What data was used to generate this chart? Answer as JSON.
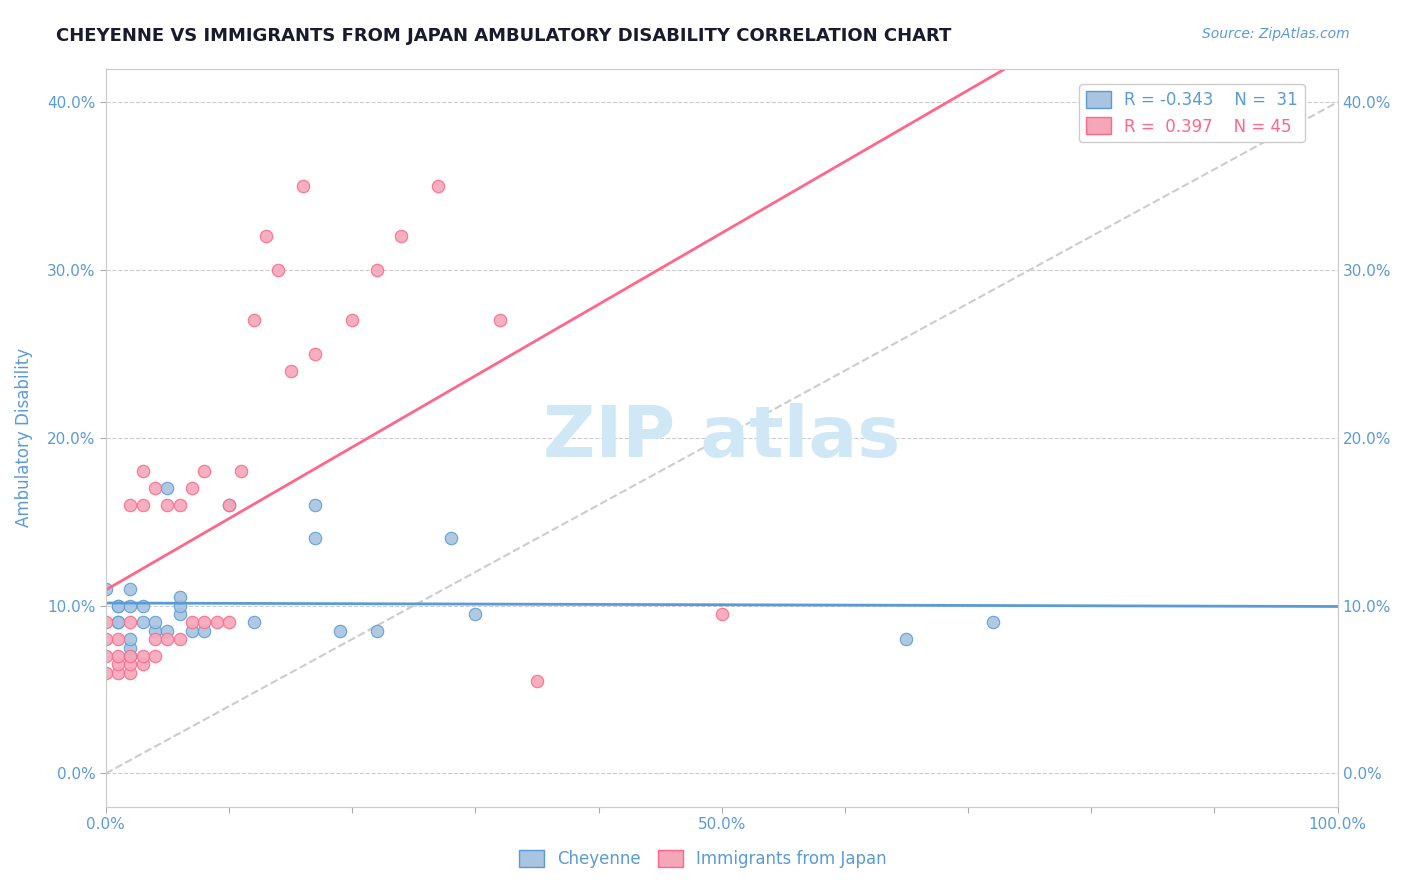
{
  "title": "CHEYENNE VS IMMIGRANTS FROM JAPAN AMBULATORY DISABILITY CORRELATION CHART",
  "source_text": "Source: ZipAtlas.com",
  "xlabel": "",
  "ylabel": "Ambulatory Disability",
  "xlim": [
    0.0,
    1.0
  ],
  "ylim": [
    -0.02,
    0.42
  ],
  "xticks": [
    0.0,
    0.1,
    0.2,
    0.3,
    0.4,
    0.5,
    0.6,
    0.7,
    0.8,
    0.9,
    1.0
  ],
  "yticks": [
    0.0,
    0.1,
    0.2,
    0.3,
    0.4
  ],
  "ytick_labels": [
    "0.0%",
    "10.0%",
    "20.0%",
    "30.0%",
    "40.0%"
  ],
  "xtick_labels": [
    "0.0%",
    "",
    "",
    "",
    "",
    "50.0%",
    "",
    "",
    "",
    "",
    "100.0%"
  ],
  "legend_r1": "R = -0.343",
  "legend_n1": "N =  31",
  "legend_r2": "R =  0.397",
  "legend_n2": "N = 45",
  "color_cheyenne": "#a8c4e0",
  "color_japan": "#f4a7b9",
  "color_line_cheyenne": "#5b9bd5",
  "color_line_japan": "#ff6688",
  "color_axis_labels": "#5b9bd5",
  "watermark_text": "ZIPAtlas",
  "watermark_color": "#d0e8f5",
  "cheyenne_x": [
    0.0,
    0.01,
    0.01,
    0.01,
    0.01,
    0.02,
    0.02,
    0.02,
    0.02,
    0.02,
    0.03,
    0.03,
    0.04,
    0.04,
    0.05,
    0.05,
    0.06,
    0.06,
    0.06,
    0.07,
    0.08,
    0.1,
    0.12,
    0.17,
    0.17,
    0.19,
    0.22,
    0.28,
    0.3,
    0.65,
    0.72
  ],
  "cheyenne_y": [
    0.11,
    0.09,
    0.09,
    0.1,
    0.1,
    0.07,
    0.075,
    0.08,
    0.1,
    0.11,
    0.09,
    0.1,
    0.085,
    0.09,
    0.085,
    0.17,
    0.095,
    0.1,
    0.105,
    0.085,
    0.085,
    0.16,
    0.09,
    0.14,
    0.16,
    0.085,
    0.085,
    0.14,
    0.095,
    0.08,
    0.09
  ],
  "japan_x": [
    0.0,
    0.0,
    0.0,
    0.0,
    0.01,
    0.01,
    0.01,
    0.01,
    0.02,
    0.02,
    0.02,
    0.02,
    0.02,
    0.03,
    0.03,
    0.03,
    0.03,
    0.04,
    0.04,
    0.04,
    0.05,
    0.05,
    0.06,
    0.06,
    0.07,
    0.07,
    0.08,
    0.08,
    0.09,
    0.1,
    0.1,
    0.11,
    0.12,
    0.13,
    0.14,
    0.15,
    0.16,
    0.17,
    0.2,
    0.22,
    0.24,
    0.27,
    0.32,
    0.35,
    0.5
  ],
  "japan_y": [
    0.06,
    0.07,
    0.08,
    0.09,
    0.06,
    0.065,
    0.07,
    0.08,
    0.06,
    0.065,
    0.07,
    0.09,
    0.16,
    0.065,
    0.07,
    0.16,
    0.18,
    0.07,
    0.08,
    0.17,
    0.08,
    0.16,
    0.08,
    0.16,
    0.09,
    0.17,
    0.09,
    0.18,
    0.09,
    0.09,
    0.16,
    0.18,
    0.27,
    0.32,
    0.3,
    0.24,
    0.35,
    0.25,
    0.27,
    0.3,
    0.32,
    0.35,
    0.27,
    0.055,
    0.095
  ]
}
